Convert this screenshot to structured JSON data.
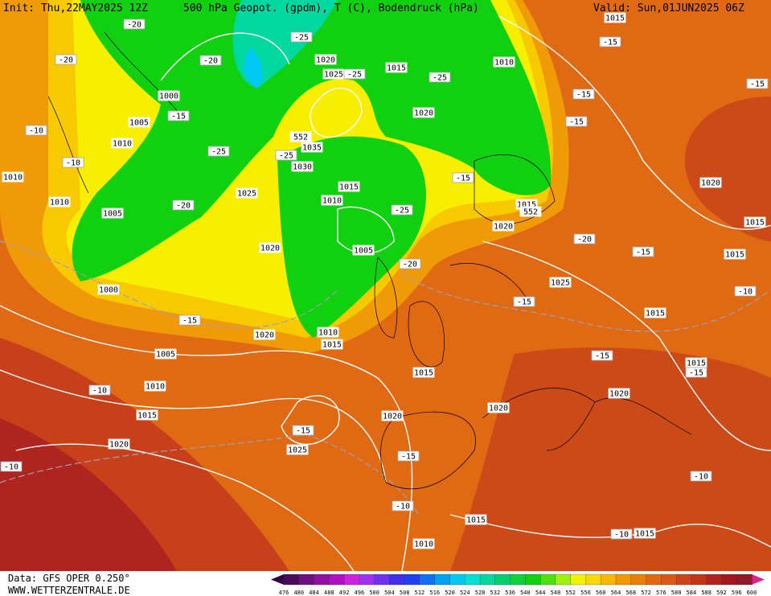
{
  "header": {
    "init": "Init: Thu,22MAY2025 12Z",
    "title": "500 hPa Geopot. (gpdm), T (C), Bodendruck (hPa)",
    "valid": "Valid: Sun,01JUN2025 06Z"
  },
  "map": {
    "isobar_labels": [
      "1000",
      "1005",
      "1010",
      "1010",
      "1010",
      "1005",
      "1000",
      "1020",
      "1025",
      "1015",
      "1010",
      "1020",
      "1035",
      "1030",
      "1025",
      "1015",
      "1010",
      "1005",
      "1020",
      "1010",
      "1015",
      "1020",
      "1005",
      "1010",
      "1015",
      "1020",
      "1025",
      "1020",
      "1015",
      "1020",
      "1015",
      "1025",
      "1015",
      "1015",
      "1020",
      "1020",
      "1015",
      "1010",
      "1015",
      "1020",
      "1015",
      "1015",
      "1015",
      "552",
      "552"
    ],
    "temperature_labels": [
      "-20",
      "-25",
      "-20",
      "-20",
      "-15",
      "-10",
      "-10",
      "-25",
      "-25",
      "-20",
      "-25",
      "-25",
      "-25",
      "-15",
      "-15",
      "-15",
      "-15",
      "-15",
      "-20",
      "-20",
      "-15",
      "-15",
      "-10",
      "-15",
      "-15",
      "-15",
      "-10",
      "-15",
      "-15",
      "-10",
      "-10",
      "-10",
      "-10"
    ]
  },
  "footer": {
    "source": "Data: GFS OPER 0.250°",
    "website": "WWW.WETTERZENTRALE.DE"
  },
  "colorbar": {
    "ticks": [
      476,
      480,
      484,
      488,
      492,
      496,
      500,
      504,
      508,
      512,
      516,
      520,
      524,
      528,
      532,
      536,
      540,
      544,
      548,
      552,
      556,
      560,
      564,
      568,
      572,
      576,
      580,
      584,
      588,
      592,
      596,
      600
    ],
    "colors": [
      "#4b0a5a",
      "#6e1080",
      "#9010a0",
      "#b010c0",
      "#d020e0",
      "#a030f0",
      "#7030f0",
      "#4030e8",
      "#2040f0",
      "#1070f0",
      "#00a0f0",
      "#00c8f0",
      "#00e0d0",
      "#00d8a0",
      "#00d070",
      "#10d040",
      "#10d010",
      "#50e010",
      "#a0f010",
      "#f0f000",
      "#f8d800",
      "#f8b800",
      "#f09800",
      "#e88000",
      "#e06810",
      "#d85818",
      "#cc4418",
      "#c03418",
      "#b02420",
      "#a01820",
      "#901828"
    ]
  }
}
